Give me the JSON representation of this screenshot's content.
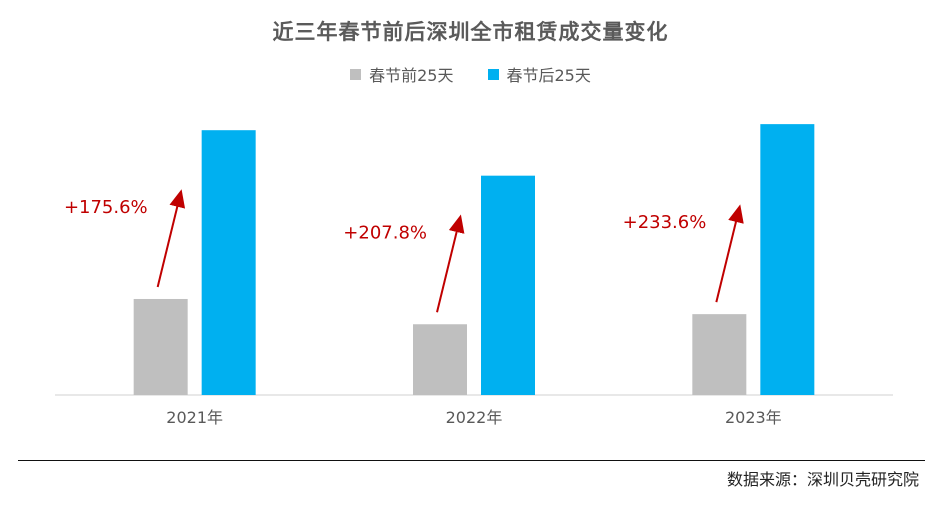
{
  "title": "近三年春节前后深圳全市租赁成交量变化",
  "legend": [
    {
      "label": "春节前25天",
      "color": "#BFBFBF"
    },
    {
      "label": "春节后25天",
      "color": "#00B0F0"
    }
  ],
  "source": "数据来源：深圳贝壳研究院",
  "annotation_color": "#C00000",
  "chart_data": {
    "type": "bar",
    "title": "近三年春节前后深圳全市租赁成交量变化",
    "xlabel": "",
    "ylabel": "",
    "categories": [
      "2021年",
      "2022年",
      "2023年"
    ],
    "series": [
      {
        "name": "春节前25天",
        "color": "#BFBFBF",
        "values": [
          95,
          70,
          80
        ]
      },
      {
        "name": "春节后25天",
        "color": "#00B0F0",
        "values": [
          262,
          217,
          268
        ]
      }
    ],
    "annotations": [
      "+175.6%",
      "+207.8%",
      "+233.6%"
    ],
    "ylim": [
      0,
      280
    ],
    "grid": false,
    "legend_position": "top"
  }
}
